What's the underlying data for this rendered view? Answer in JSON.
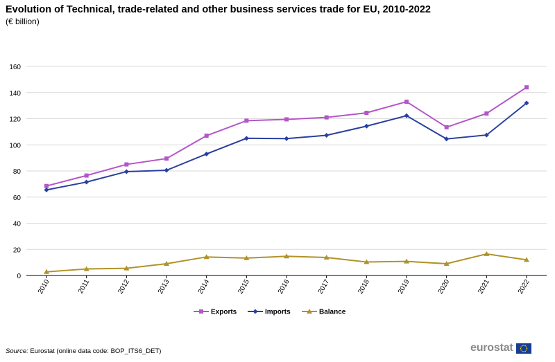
{
  "header": {
    "title": "Evolution of Technical, trade-related and other business services trade for EU, 2010-2022",
    "subtitle": "(€ billion)"
  },
  "footer": {
    "source_label": "Source:",
    "source_text": " Eurostat (online data code: BOP_ITS6_DET)",
    "logo_text": "eurostat"
  },
  "colors": {
    "exports": "#b455c8",
    "imports": "#2a3f9e",
    "balance": "#b09228",
    "grid": "#d9d9d9",
    "flag": "#143d95",
    "flag_stars": "#ffd617"
  },
  "chart_data": {
    "type": "line",
    "categories": [
      "2010",
      "2011",
      "2012",
      "2013",
      "2014",
      "2015",
      "2016",
      "2017",
      "2018",
      "2019",
      "2020",
      "2021",
      "2022"
    ],
    "series": [
      {
        "name": "Exports",
        "marker": "square",
        "values": [
          68.5,
          76.5,
          85.0,
          89.5,
          107.0,
          118.5,
          119.5,
          121.0,
          124.5,
          133.0,
          113.5,
          124.0,
          144.0
        ]
      },
      {
        "name": "Imports",
        "marker": "diamond",
        "values": [
          65.5,
          71.5,
          79.5,
          80.5,
          93.0,
          105.0,
          104.8,
          107.3,
          114.3,
          122.3,
          104.5,
          107.5,
          132.0
        ]
      },
      {
        "name": "Balance",
        "marker": "triangle",
        "values": [
          2.8,
          5.0,
          5.5,
          9.0,
          14.2,
          13.3,
          14.7,
          13.8,
          10.3,
          10.8,
          9.0,
          16.5,
          12.0
        ]
      }
    ],
    "ylim": [
      0,
      160
    ],
    "yticks": [
      0,
      20,
      40,
      60,
      80,
      100,
      120,
      140,
      160
    ],
    "grid": true,
    "legend_position": "bottom-center",
    "xlabel": "",
    "ylabel": ""
  }
}
